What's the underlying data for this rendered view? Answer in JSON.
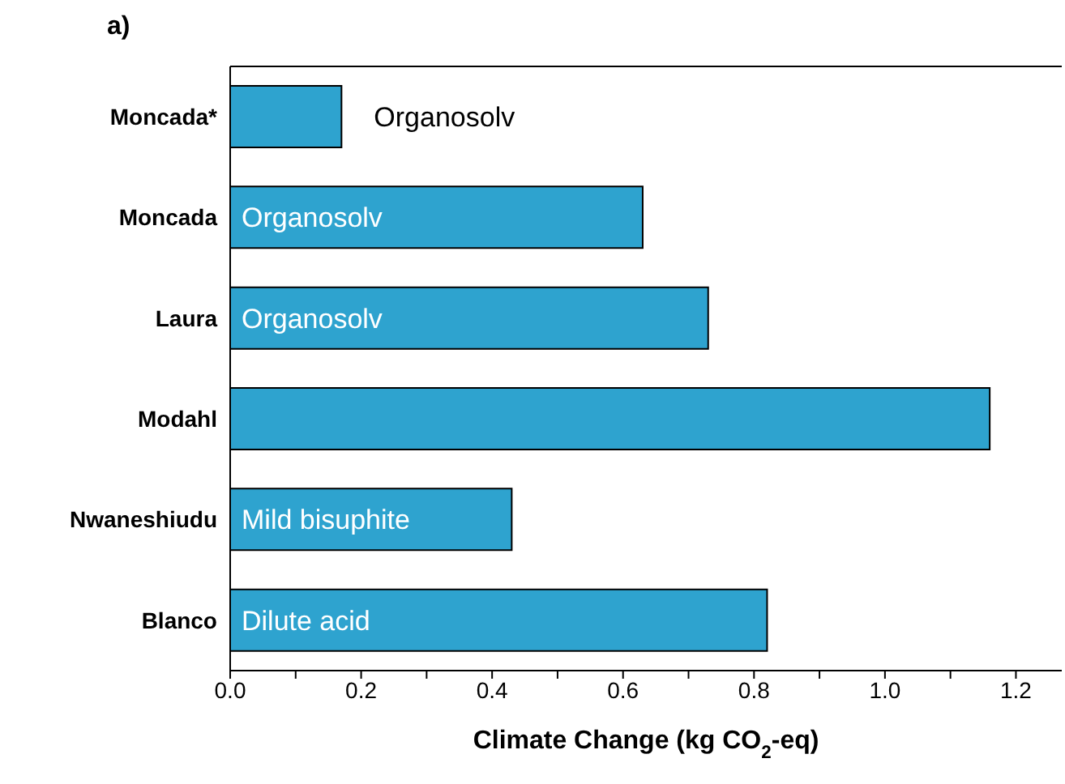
{
  "chart_data": {
    "type": "bar",
    "orientation": "horizontal",
    "title": "a)",
    "xlabel": "Climate Change (kg CO$_{2}$-eq)",
    "categories": [
      "Moncada*",
      "Moncada",
      "Laura",
      "Modahl",
      "Nwaneshiudu",
      "Blanco"
    ],
    "values": [
      0.17,
      0.63,
      0.73,
      1.16,
      0.43,
      0.82
    ],
    "color": "#2ea3cf",
    "xlim": [
      0,
      1.27
    ],
    "xticks": [
      {
        "value": 0,
        "label": "0.0"
      },
      {
        "value": 0.1,
        "label": null
      },
      {
        "value": 0.2,
        "label": "0.2"
      },
      {
        "value": 0.3,
        "label": null
      },
      {
        "value": 0.4,
        "label": "0.4"
      },
      {
        "value": 0.5,
        "label": null
      },
      {
        "value": 0.6,
        "label": "0.6"
      },
      {
        "value": 0.7,
        "label": null
      },
      {
        "value": 0.8,
        "label": "0.8"
      },
      {
        "value": 0.9,
        "label": null
      },
      {
        "value": 1.0,
        "label": "1.0"
      },
      {
        "value": 1.1,
        "label": null
      },
      {
        "value": 1.2,
        "label": "1.2"
      }
    ],
    "value_labels": [
      "Organosolv",
      "Organosolv",
      "Organosolv",
      null,
      "Mild bisuphite",
      "Dilute acid"
    ]
  }
}
